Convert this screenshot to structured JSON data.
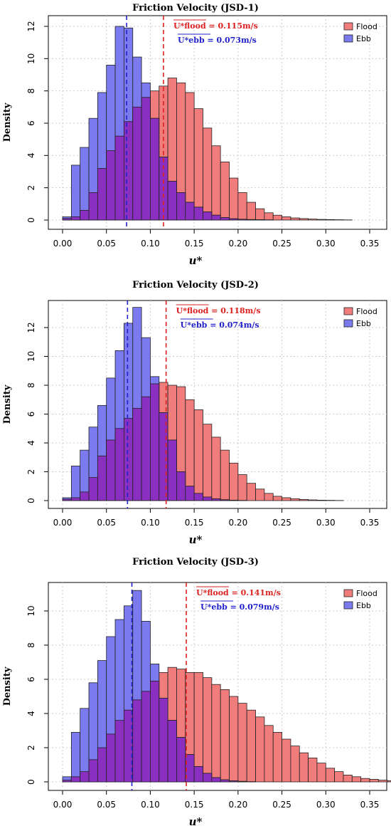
{
  "chart_data": [
    {
      "type": "bar",
      "title": "Friction Velocity (JSD-1)",
      "xlabel": "u*",
      "ylabel": "Density",
      "xlim": [
        0.0,
        0.35
      ],
      "ylim": [
        0,
        12
      ],
      "x_ticks": [
        "0.00",
        "0.05",
        "0.10",
        "0.15",
        "0.20",
        "0.25",
        "0.30",
        "0.35"
      ],
      "y_ticks": [
        "0",
        "2",
        "4",
        "6",
        "8",
        "10",
        "12"
      ],
      "bin_start": 0.0,
      "bin_width": 0.01,
      "grid": true,
      "legend_position": "top-right",
      "series": [
        {
          "name": "Flood",
          "color": "#f07c7c",
          "values": [
            0.1,
            0.2,
            0.6,
            1.7,
            3.2,
            4.3,
            5.2,
            6.1,
            7.0,
            7.6,
            8.0,
            8.3,
            8.8,
            8.5,
            7.9,
            6.9,
            5.7,
            4.6,
            3.6,
            2.6,
            1.7,
            1.1,
            0.7,
            0.45,
            0.3,
            0.2,
            0.13,
            0.09,
            0.06,
            0.04,
            0.03,
            0.02,
            0.01
          ]
        },
        {
          "name": "Ebb",
          "color": "#7b7bef",
          "values": [
            0.2,
            3.4,
            4.5,
            6.3,
            7.9,
            9.6,
            12.0,
            11.9,
            10.1,
            8.5,
            6.3,
            3.9,
            2.4,
            1.7,
            1.1,
            0.8,
            0.5,
            0.3,
            0.15,
            0.08,
            0.05,
            0.03,
            0.02,
            0.01,
            0.0
          ]
        }
      ],
      "mean_lines": [
        {
          "label": "U*flood = 0.115m/s",
          "value": 0.115,
          "color": "#dd2222"
        },
        {
          "label": "U*ebb = 0.073m/s",
          "value": 0.073,
          "color": "#2222cc"
        }
      ]
    },
    {
      "type": "bar",
      "title": "Friction Velocity (JSD-2)",
      "xlabel": "u*",
      "ylabel": "Density",
      "xlim": [
        0.0,
        0.35
      ],
      "ylim": [
        0,
        13.5
      ],
      "x_ticks": [
        "0.00",
        "0.05",
        "0.10",
        "0.15",
        "0.20",
        "0.25",
        "0.30",
        "0.35"
      ],
      "y_ticks": [
        "0",
        "2",
        "4",
        "6",
        "8",
        "10",
        "12"
      ],
      "bin_start": 0.0,
      "bin_width": 0.01,
      "grid": true,
      "legend_position": "top-right",
      "series": [
        {
          "name": "Flood",
          "color": "#f07c7c",
          "values": [
            0.1,
            0.2,
            0.6,
            1.6,
            3.1,
            4.2,
            5.0,
            5.7,
            6.4,
            7.2,
            8.1,
            8.2,
            8.0,
            7.9,
            7.0,
            6.3,
            5.3,
            4.4,
            3.5,
            2.6,
            1.8,
            1.2,
            0.8,
            0.5,
            0.3,
            0.2,
            0.13,
            0.08,
            0.05,
            0.03,
            0.02,
            0.01
          ]
        },
        {
          "name": "Ebb",
          "color": "#7b7bef",
          "values": [
            0.2,
            2.4,
            3.5,
            5.1,
            6.6,
            8.5,
            10.4,
            12.3,
            13.4,
            11.3,
            8.6,
            6.1,
            4.2,
            2.0,
            1.0,
            0.5,
            0.25,
            0.12,
            0.06,
            0.03,
            0.01
          ]
        }
      ],
      "mean_lines": [
        {
          "label": "U*flood = 0.118m/s",
          "value": 0.118,
          "color": "#dd2222"
        },
        {
          "label": "U*ebb = 0.074m/s",
          "value": 0.074,
          "color": "#2222cc"
        }
      ]
    },
    {
      "type": "bar",
      "title": "Friction Velocity (JSD-3)",
      "xlabel": "u*",
      "ylabel": "Density",
      "xlim": [
        0.0,
        0.35
      ],
      "ylim": [
        0,
        11.5
      ],
      "x_ticks": [
        "0.00",
        "0.05",
        "0.10",
        "0.15",
        "0.20",
        "0.25",
        "0.30",
        "0.35"
      ],
      "y_ticks": [
        "0",
        "2",
        "4",
        "6",
        "8",
        "10"
      ],
      "bin_start": 0.0,
      "bin_width": 0.01,
      "grid": true,
      "legend_position": "top-right",
      "series": [
        {
          "name": "Flood",
          "color": "#f07c7c",
          "values": [
            0.1,
            0.3,
            0.6,
            1.3,
            2.0,
            2.8,
            3.6,
            4.2,
            4.8,
            5.3,
            5.9,
            6.4,
            6.7,
            6.6,
            6.4,
            6.4,
            6.1,
            5.7,
            5.4,
            5.0,
            4.6,
            4.2,
            3.8,
            3.3,
            2.9,
            2.5,
            2.1,
            1.7,
            1.4,
            1.1,
            0.8,
            0.6,
            0.4,
            0.3,
            0.2,
            0.15,
            0.1,
            0.07,
            0.05,
            0.03,
            0.02,
            0.01
          ]
        },
        {
          "name": "Ebb",
          "color": "#7b7bef",
          "values": [
            0.3,
            2.9,
            4.3,
            5.8,
            7.1,
            8.5,
            9.5,
            10.3,
            11.2,
            9.4,
            6.9,
            4.9,
            3.6,
            2.6,
            1.6,
            0.9,
            0.5,
            0.25,
            0.12,
            0.06,
            0.03,
            0.01
          ]
        }
      ],
      "mean_lines": [
        {
          "label": "U*flood = 0.141m/s",
          "value": 0.141,
          "color": "#dd2222"
        },
        {
          "label": "U*ebb = 0.079m/s",
          "value": 0.079,
          "color": "#2222cc"
        }
      ]
    }
  ]
}
